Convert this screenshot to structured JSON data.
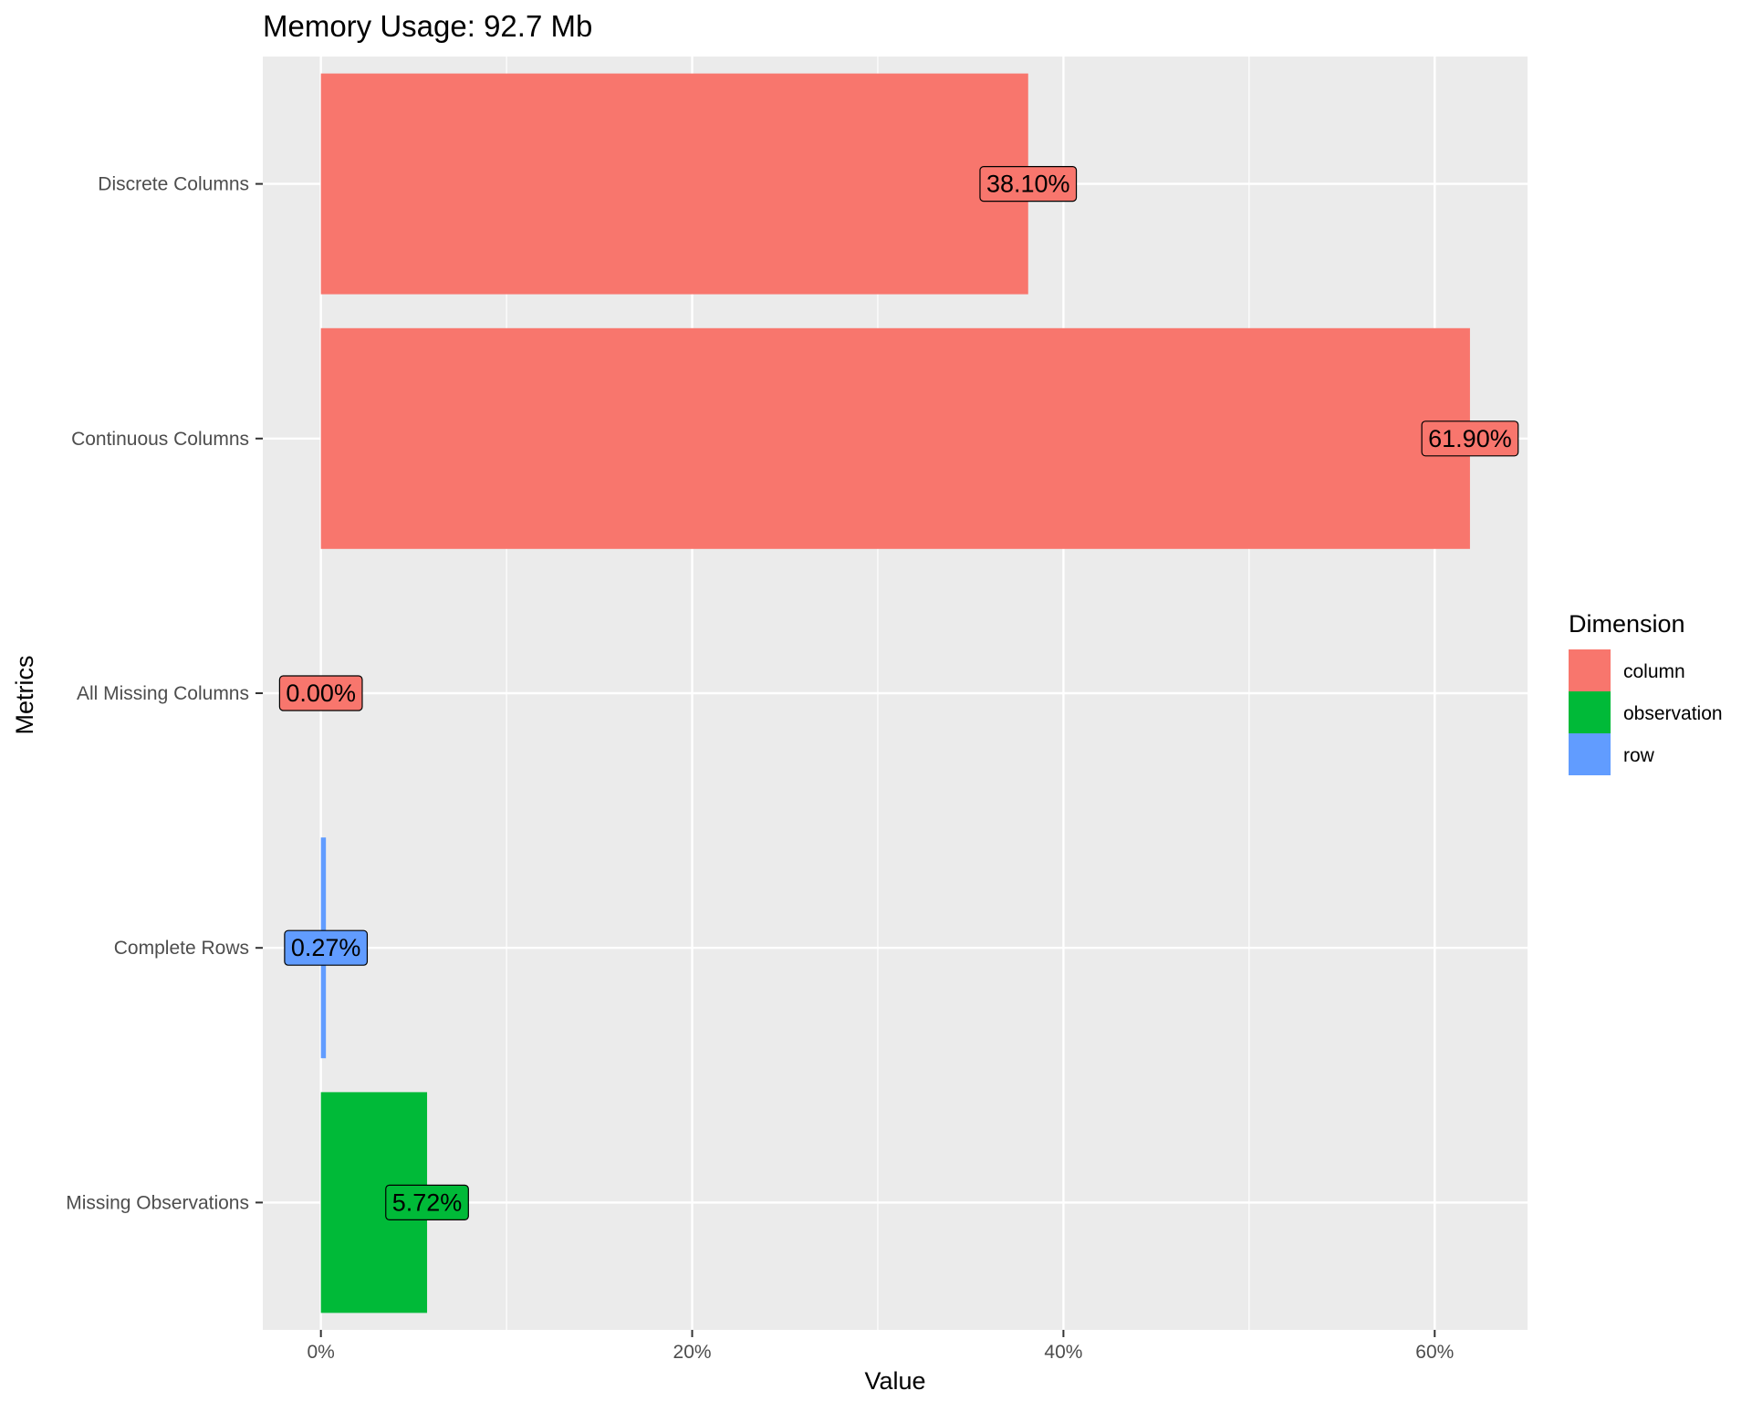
{
  "chart_data": {
    "type": "bar",
    "orientation": "horizontal",
    "title": "Memory Usage: 92.7 Mb",
    "xlabel": "Value",
    "ylabel": "Metrics",
    "xlim": [
      -0.0313,
      0.65
    ],
    "x_ticks": [
      0,
      0.2,
      0.4,
      0.6
    ],
    "x_tick_labels": [
      "0%",
      "20%",
      "40%",
      "60%"
    ],
    "grid": true,
    "background": "#ebebeb",
    "legend": {
      "title": "Dimension",
      "position": "right",
      "entries": [
        {
          "name": "column",
          "color": "#f8766d"
        },
        {
          "name": "observation",
          "color": "#00ba38"
        },
        {
          "name": "row",
          "color": "#619cff"
        }
      ]
    },
    "categories": [
      "Discrete Columns",
      "Continuous Columns",
      "All Missing Columns",
      "Complete Rows",
      "Missing Observations"
    ],
    "values": [
      0.381,
      0.619,
      0.0,
      0.0027,
      0.0572
    ],
    "labels": [
      "38.10%",
      "61.90%",
      "0.00%",
      "0.27%",
      "5.72%"
    ],
    "dimension": [
      "column",
      "column",
      "column",
      "row",
      "observation"
    ]
  }
}
